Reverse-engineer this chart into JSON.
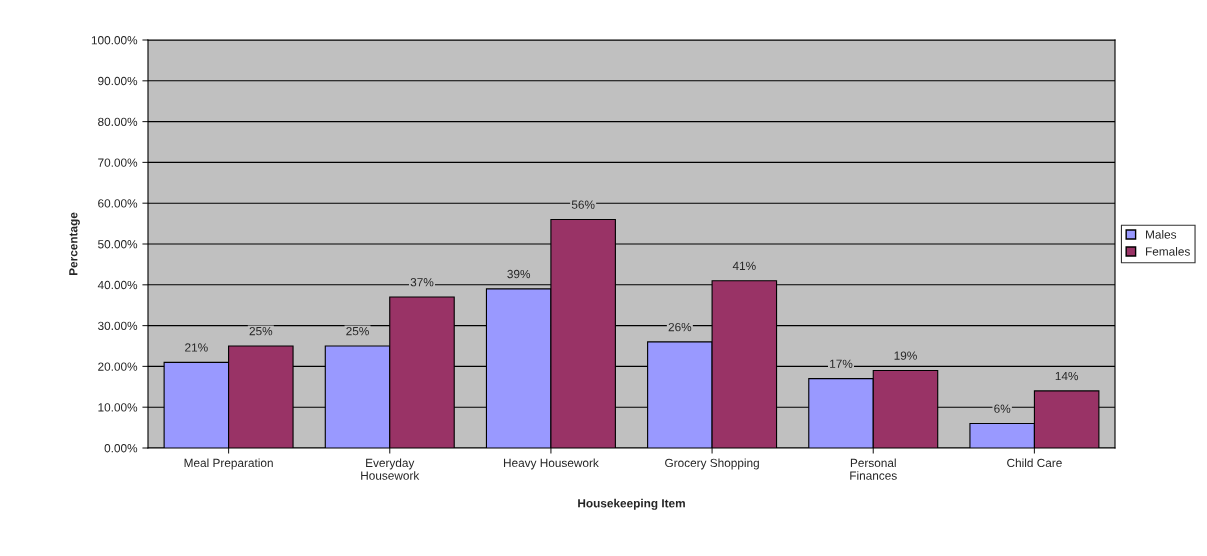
{
  "chart_data": {
    "type": "bar",
    "categories": [
      "Meal Preparation",
      "Everyday\nHousework",
      "Heavy Housework",
      "Grocery Shopping",
      "Personal\nFinances",
      "Child Care"
    ],
    "series": [
      {
        "name": "Males",
        "color": "#9999ff",
        "values": [
          21,
          25,
          39,
          26,
          17,
          6
        ],
        "value_labels": [
          "21%",
          "25%",
          "39%",
          "26%",
          "17%",
          "6%"
        ]
      },
      {
        "name": "Females",
        "color": "#993366",
        "values": [
          25,
          37,
          56,
          41,
          19,
          14
        ],
        "value_labels": [
          "25%",
          "37%",
          "56%",
          "41%",
          "19%",
          "14%"
        ]
      }
    ],
    "xlabel": "Housekeeping Item",
    "ylabel": "Percentage",
    "ylim": [
      0,
      100
    ],
    "yticks": [
      {
        "value": 0,
        "label": "0.00%"
      },
      {
        "value": 10,
        "label": "10.00%"
      },
      {
        "value": 20,
        "label": "20.00%"
      },
      {
        "value": 30,
        "label": "30.00%"
      },
      {
        "value": 40,
        "label": "40.00%"
      },
      {
        "value": 50,
        "label": "50.00%"
      },
      {
        "value": 60,
        "label": "60.00%"
      },
      {
        "value": 70,
        "label": "70.00%"
      },
      {
        "value": 80,
        "label": "80.00%"
      },
      {
        "value": 90,
        "label": "90.00%"
      },
      {
        "value": 100,
        "label": "100.00%"
      }
    ],
    "grid": "y",
    "legend": "right"
  }
}
